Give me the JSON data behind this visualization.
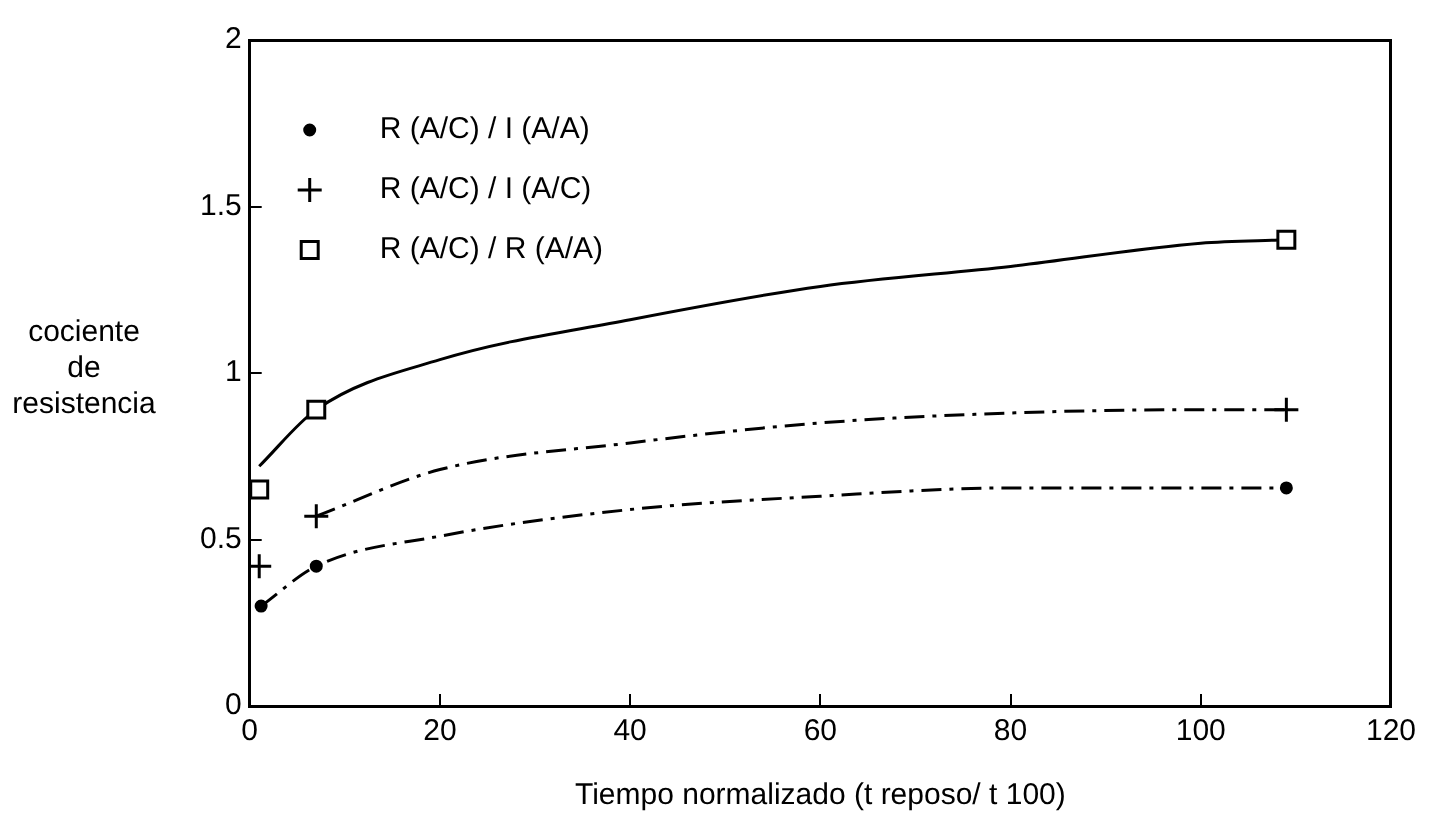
{
  "chart_data": {
    "type": "scatter",
    "xlabel": "Tiempo normalizado (t reposo/ t 100)",
    "ylabel": "cociente de resistencia",
    "xlim": [
      0,
      120
    ],
    "xticks": [
      0,
      20,
      40,
      60,
      80,
      100,
      120
    ],
    "ylim": [
      0,
      2
    ],
    "yticks": [
      0,
      0.5,
      1,
      1.5,
      2
    ],
    "grid": false,
    "legend": "top left",
    "series": [
      {
        "name": "R (A/C) / I (A/A)",
        "color": "#000000",
        "marker": "circle",
        "x": [
          1.2,
          7,
          109
        ],
        "values": [
          0.3,
          0.42,
          0.655
        ]
      },
      {
        "name": "R (A/C) / I (A/C)",
        "color": "#000000",
        "marker": "cross",
        "x": [
          1,
          7,
          109
        ],
        "values": [
          0.42,
          0.57,
          0.89
        ]
      },
      {
        "name": "R (A/C) / R (A/A)",
        "color": "#000000",
        "marker": "square",
        "x": [
          1,
          7,
          109
        ],
        "values": [
          0.65,
          0.89,
          1.4
        ]
      },
      {
        "type": "line",
        "color": "#000000",
        "marker": "none",
        "line_style": "dashed",
        "x": [
          1.2,
          7,
          20,
          40,
          60,
          80,
          100,
          109
        ],
        "values": [
          0.3,
          0.42,
          0.51,
          0.59,
          0.63,
          0.655,
          0.655,
          0.655
        ]
      },
      {
        "type": "line",
        "color": "#000000",
        "marker": "none",
        "line_style": "dashed",
        "x": [
          7,
          20,
          40,
          60,
          80,
          100,
          109
        ],
        "values": [
          0.57,
          0.71,
          0.79,
          0.85,
          0.88,
          0.89,
          0.89
        ]
      },
      {
        "type": "line",
        "color": "#000000",
        "marker": "none",
        "line_style": "solid",
        "x": [
          1,
          7,
          20,
          40,
          60,
          80,
          100,
          109
        ],
        "values": [
          0.72,
          0.89,
          1.04,
          1.16,
          1.26,
          1.32,
          1.39,
          1.4
        ]
      }
    ]
  }
}
